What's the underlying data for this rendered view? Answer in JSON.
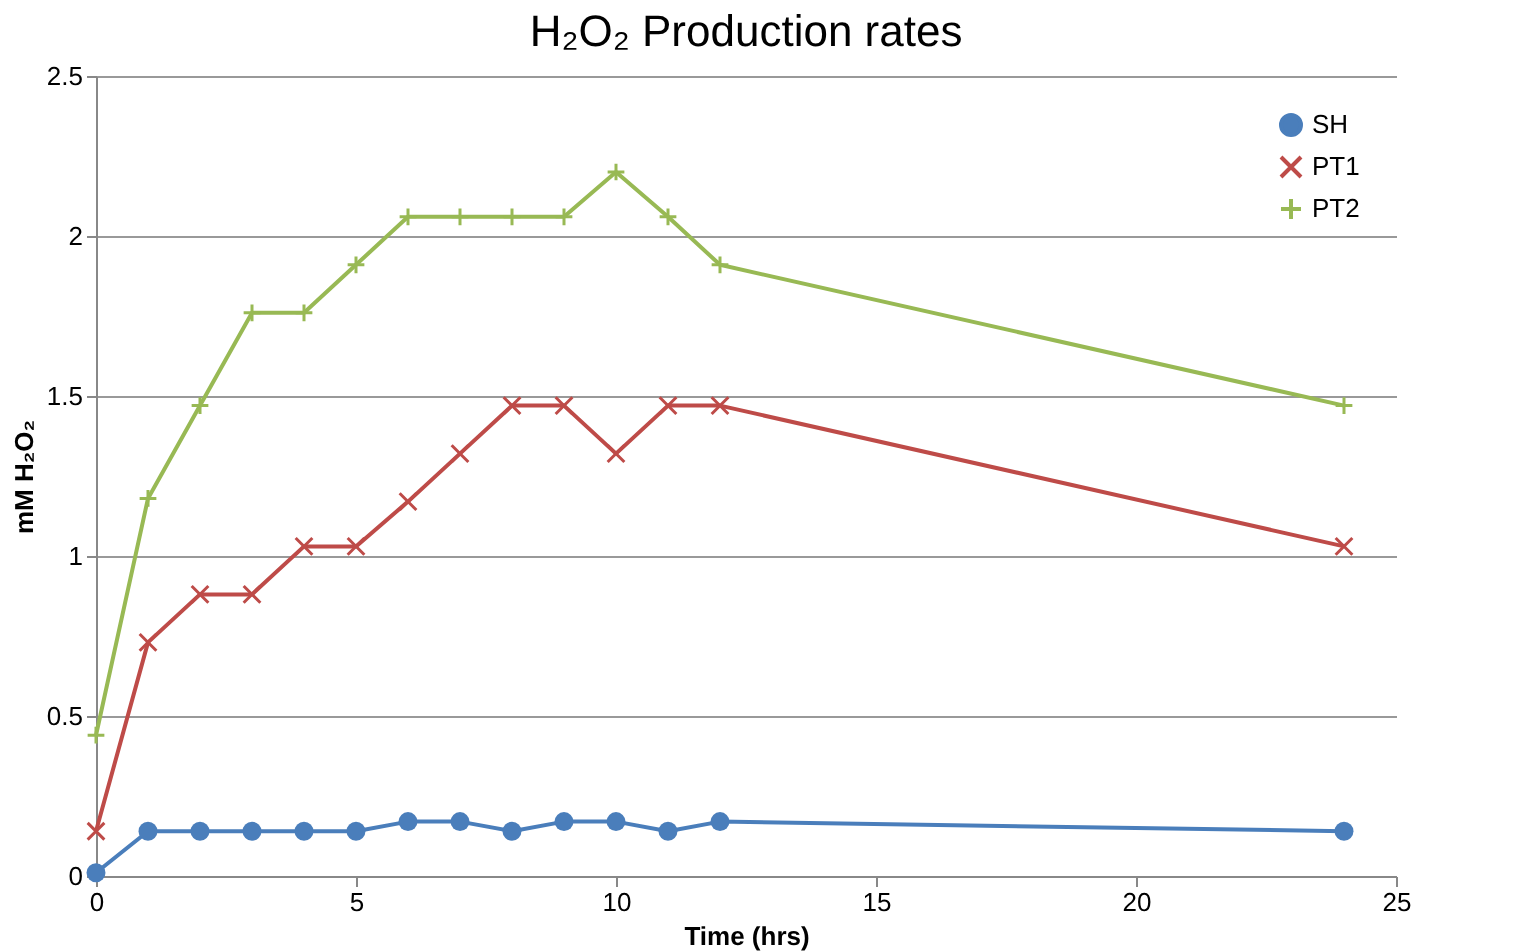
{
  "chart_data": {
    "type": "line",
    "title": "H₂O₂ Production rates",
    "xlabel": "Time (hrs)",
    "ylabel": "mM H₂O₂",
    "x": [
      0,
      1,
      2,
      3,
      4,
      5,
      6,
      7,
      8,
      9,
      10,
      11,
      12,
      24
    ],
    "series": [
      {
        "name": "SH",
        "color": "#4a7ebb",
        "marker": "circle",
        "values": [
          0.01,
          0.14,
          0.14,
          0.14,
          0.14,
          0.14,
          0.17,
          0.17,
          0.14,
          0.17,
          0.17,
          0.14,
          0.17,
          0.14
        ]
      },
      {
        "name": "PT1",
        "color": "#be4b48",
        "marker": "cross",
        "values": [
          0.14,
          0.73,
          0.88,
          0.88,
          1.03,
          1.03,
          1.17,
          1.32,
          1.47,
          1.47,
          1.32,
          1.47,
          1.47,
          1.03
        ]
      },
      {
        "name": "PT2",
        "color": "#98b954",
        "marker": "plus",
        "values": [
          0.44,
          1.18,
          1.47,
          1.76,
          1.76,
          1.91,
          2.06,
          2.06,
          2.06,
          2.06,
          2.2,
          2.06,
          1.91,
          1.47
        ]
      }
    ],
    "xlim": [
      0,
      25
    ],
    "xticks": [
      0,
      5,
      10,
      15,
      20,
      25
    ],
    "ylim": [
      0,
      2.5
    ],
    "yticks": [
      0,
      0.5,
      1,
      1.5,
      2,
      2.5
    ],
    "grid": "y",
    "legend": "top right",
    "line_style": "solid"
  }
}
